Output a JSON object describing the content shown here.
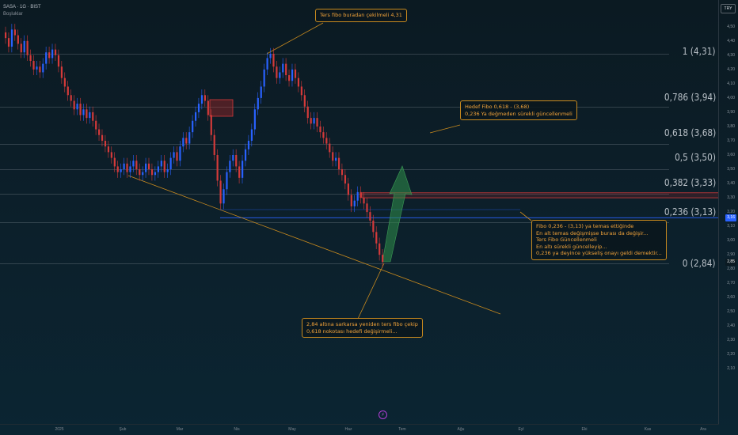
{
  "header": {
    "symbol_line": "SASA · 1G · BIST",
    "layout_label": "Boşluklar"
  },
  "price_axis": {
    "currency": "TRY",
    "ticks": [
      "4,50",
      "4,40",
      "4,30",
      "4,20",
      "4,10",
      "4,00",
      "3,90",
      "3,80",
      "3,70",
      "3,60",
      "3,50",
      "3,40",
      "3,30",
      "3,20",
      "3,10",
      "3,00",
      "2,90",
      "2,80",
      "2,70",
      "2,60",
      "2,50",
      "2,40",
      "2,30",
      "2,20",
      "2,10"
    ],
    "tags": [
      {
        "label": "3,16",
        "price": 3.16,
        "color": "#2962ff"
      },
      {
        "label": "2,85",
        "price": 2.85,
        "color": "#0b1a22"
      }
    ]
  },
  "time_axis": {
    "ticks": [
      "2025",
      "Şub",
      "Mar",
      "Nis",
      "May",
      "Haz",
      "Tem",
      "Ağu",
      "Eyl",
      "Eki",
      "Kas",
      "Ara"
    ]
  },
  "fib_levels": [
    {
      "label": "1 (4,31)",
      "price": 4.31
    },
    {
      "label": "0,786 (3,94)",
      "price": 3.94
    },
    {
      "label": "0,618 (3,68)",
      "price": 3.68
    },
    {
      "label": "0,5 (3,50)",
      "price": 3.5
    },
    {
      "label": "0,382 (3,33)",
      "price": 3.33
    },
    {
      "label": "0,236 (3,13)",
      "price": 3.13
    },
    {
      "label": "0 (2,84)",
      "price": 2.84
    }
  ],
  "callouts": {
    "top": {
      "lines": [
        "Ters fibo buradan çekilmeli 4,31"
      ]
    },
    "target": {
      "lines": [
        "Hedef Fibo 0,618 - (3,68)",
        "0,236 Ya değmeden sürekli güncellenmeli"
      ]
    },
    "fibo236": {
      "lines": [
        "Fibo 0,236 - (3,13) ya temas ettiğinde",
        "En alt temas değişmişse burası da değişir...",
        "Ters Fibo Güncellenmeli",
        "En altı sürekli güncelleyip...",
        "0,236 ya deyince yükseliş onayı geldi demektir..."
      ]
    },
    "bottom": {
      "lines": [
        "2,84 altına sarkarsa yeniden ters fibo çekip",
        "0,618 nokotası hedefi değişirmeli..."
      ]
    }
  },
  "icons": {
    "flash": "flash-icon"
  },
  "colors": {
    "up": "#2962ff",
    "down": "#d43a3a",
    "accent": "#c98a1e",
    "arrow": "#2f8f4a"
  }
}
